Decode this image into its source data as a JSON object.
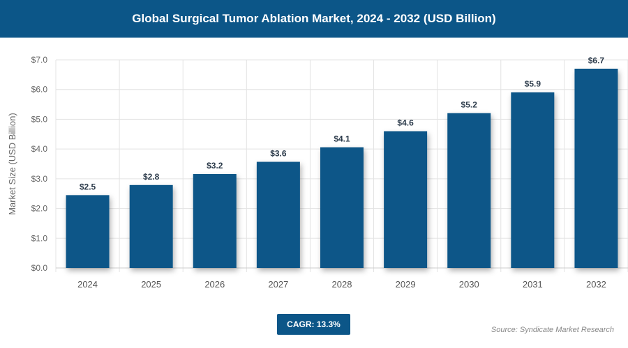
{
  "header": {
    "title": "Global Surgical Tumor Ablation Market, 2024 - 2032 (USD Billion)"
  },
  "chart_data": {
    "type": "bar",
    "title": "Global Surgical Tumor Ablation Market, 2024 - 2032 (USD Billion)",
    "xlabel": "",
    "ylabel": "Market Size (USD Billion)",
    "ylim": [
      0,
      7
    ],
    "yticks": [
      "$0.0",
      "$1.0",
      "$2.0",
      "$3.0",
      "$4.0",
      "$5.0",
      "$6.0",
      "$7.0"
    ],
    "categories": [
      "2024",
      "2025",
      "2026",
      "2027",
      "2028",
      "2029",
      "2030",
      "2031",
      "2032"
    ],
    "values": [
      2.45,
      2.79,
      3.16,
      3.57,
      4.06,
      4.6,
      5.21,
      5.91,
      6.7
    ],
    "labels": [
      "$2.5",
      "$2.8",
      "$3.2",
      "$3.6",
      "$4.1",
      "$4.6",
      "$5.2",
      "$5.9",
      "$6.7"
    ],
    "grid": true,
    "bar_color": "#0c5688"
  },
  "footer": {
    "cagr": "CAGR: 13.3%",
    "source": "Source: Syndicate Market Research"
  }
}
